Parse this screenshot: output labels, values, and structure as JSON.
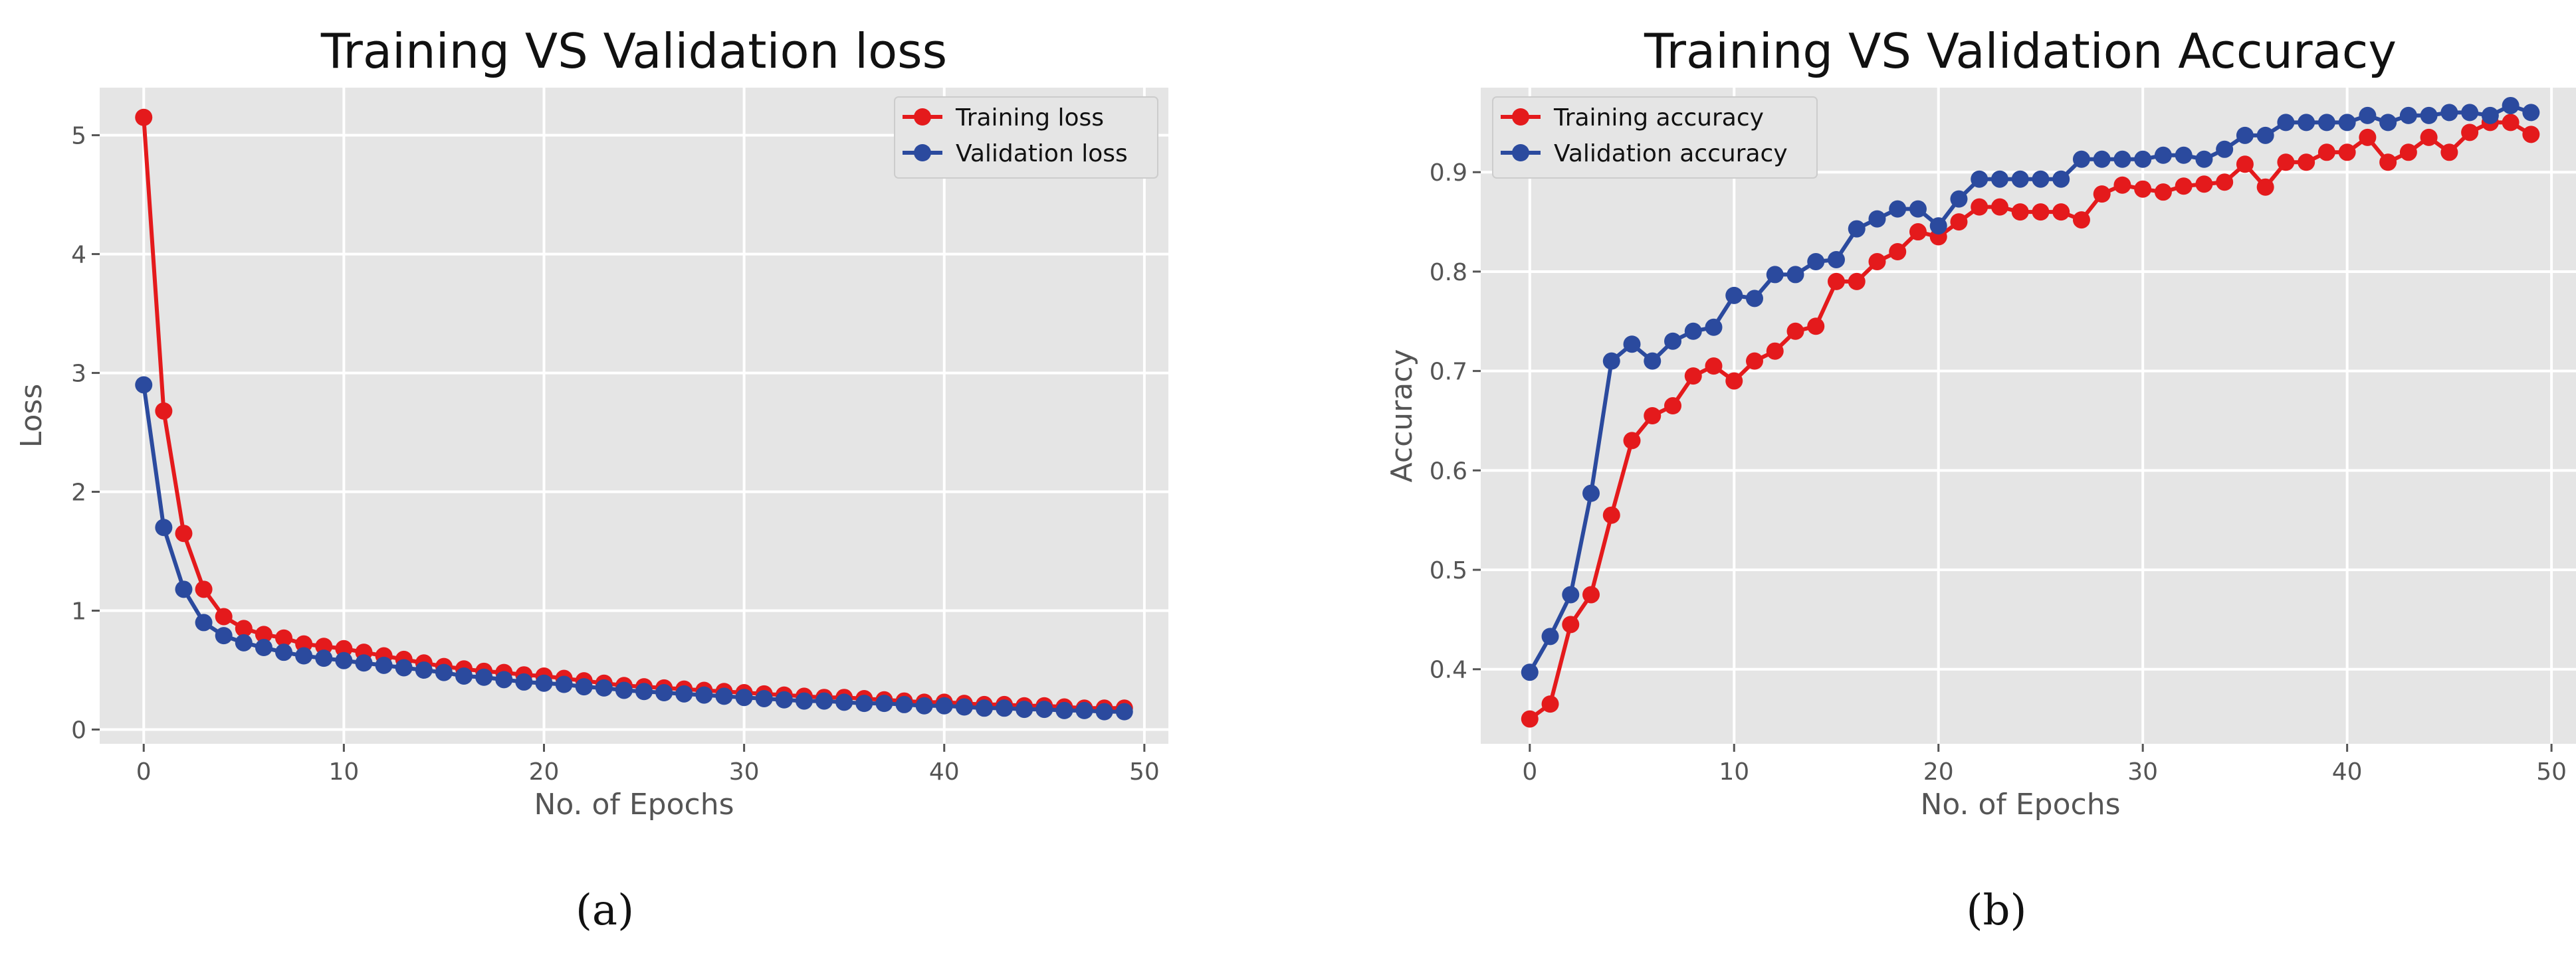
{
  "colors": {
    "training": "#e41a1c",
    "validation": "#2b4a9e",
    "panel_bg": "#e5e5e5",
    "grid": "#ffffff"
  },
  "chart_data": [
    {
      "type": "line",
      "title": "Training VS Validation loss",
      "xlabel": "No. of Epochs",
      "ylabel": "Loss",
      "caption": "(a)",
      "xlim": [
        -2.2,
        51.2
      ],
      "ylim": [
        -0.12,
        5.4
      ],
      "xticks": [
        0,
        10,
        20,
        30,
        40,
        50
      ],
      "yticks": [
        0,
        1,
        2,
        3,
        4,
        5
      ],
      "legend_position": "top-right",
      "x": [
        0,
        1,
        2,
        3,
        4,
        5,
        6,
        7,
        8,
        9,
        10,
        11,
        12,
        13,
        14,
        15,
        16,
        17,
        18,
        19,
        20,
        21,
        22,
        23,
        24,
        25,
        26,
        27,
        28,
        29,
        30,
        31,
        32,
        33,
        34,
        35,
        36,
        37,
        38,
        39,
        40,
        41,
        42,
        43,
        44,
        45,
        46,
        47,
        48,
        49
      ],
      "series": [
        {
          "name": "Training loss",
          "color": "#e41a1c",
          "values": [
            5.15,
            2.68,
            1.65,
            1.18,
            0.95,
            0.85,
            0.8,
            0.77,
            0.72,
            0.7,
            0.68,
            0.65,
            0.62,
            0.59,
            0.56,
            0.53,
            0.51,
            0.49,
            0.48,
            0.46,
            0.45,
            0.43,
            0.41,
            0.39,
            0.37,
            0.36,
            0.35,
            0.34,
            0.33,
            0.32,
            0.31,
            0.3,
            0.29,
            0.28,
            0.27,
            0.27,
            0.26,
            0.25,
            0.24,
            0.23,
            0.23,
            0.22,
            0.21,
            0.21,
            0.2,
            0.2,
            0.19,
            0.18,
            0.18,
            0.18
          ]
        },
        {
          "name": "Validation loss",
          "color": "#2b4a9e",
          "values": [
            2.9,
            1.7,
            1.18,
            0.9,
            0.79,
            0.73,
            0.69,
            0.65,
            0.62,
            0.6,
            0.58,
            0.56,
            0.54,
            0.52,
            0.5,
            0.48,
            0.45,
            0.44,
            0.42,
            0.4,
            0.39,
            0.38,
            0.36,
            0.35,
            0.33,
            0.32,
            0.31,
            0.3,
            0.29,
            0.28,
            0.27,
            0.26,
            0.25,
            0.24,
            0.24,
            0.23,
            0.22,
            0.22,
            0.21,
            0.2,
            0.2,
            0.19,
            0.18,
            0.18,
            0.17,
            0.17,
            0.16,
            0.16,
            0.15,
            0.15
          ]
        }
      ]
    },
    {
      "type": "line",
      "title": "Training VS Validation Accuracy",
      "xlabel": "No. of Epochs",
      "ylabel": "Accuracy",
      "caption": "(b)",
      "xlim": [
        -2.4,
        51.2
      ],
      "ylim": [
        0.325,
        0.985
      ],
      "xticks": [
        0,
        10,
        20,
        30,
        40,
        50
      ],
      "yticks": [
        0.4,
        0.5,
        0.6,
        0.7,
        0.8,
        0.9
      ],
      "legend_position": "top-left",
      "x": [
        0,
        1,
        2,
        3,
        4,
        5,
        6,
        7,
        8,
        9,
        10,
        11,
        12,
        13,
        14,
        15,
        16,
        17,
        18,
        19,
        20,
        21,
        22,
        23,
        24,
        25,
        26,
        27,
        28,
        29,
        30,
        31,
        32,
        33,
        34,
        35,
        36,
        37,
        38,
        39,
        40,
        41,
        42,
        43,
        44,
        45,
        46,
        47,
        48,
        49
      ],
      "series": [
        {
          "name": "Training accuracy",
          "color": "#e41a1c",
          "values": [
            0.35,
            0.365,
            0.445,
            0.475,
            0.555,
            0.63,
            0.655,
            0.665,
            0.695,
            0.705,
            0.69,
            0.71,
            0.72,
            0.74,
            0.745,
            0.79,
            0.79,
            0.81,
            0.82,
            0.84,
            0.835,
            0.85,
            0.865,
            0.865,
            0.86,
            0.86,
            0.86,
            0.852,
            0.878,
            0.887,
            0.883,
            0.88,
            0.886,
            0.888,
            0.89,
            0.908,
            0.885,
            0.91,
            0.91,
            0.92,
            0.92,
            0.935,
            0.91,
            0.92,
            0.935,
            0.92,
            0.94,
            0.95,
            0.95,
            0.938
          ]
        },
        {
          "name": "Validation accuracy",
          "color": "#2b4a9e",
          "values": [
            0.397,
            0.433,
            0.475,
            0.577,
            0.71,
            0.727,
            0.71,
            0.73,
            0.74,
            0.744,
            0.776,
            0.773,
            0.797,
            0.797,
            0.81,
            0.812,
            0.843,
            0.853,
            0.863,
            0.863,
            0.846,
            0.873,
            0.893,
            0.893,
            0.893,
            0.893,
            0.893,
            0.913,
            0.913,
            0.913,
            0.913,
            0.917,
            0.917,
            0.913,
            0.923,
            0.937,
            0.937,
            0.95,
            0.95,
            0.95,
            0.95,
            0.957,
            0.95,
            0.957,
            0.957,
            0.96,
            0.96,
            0.957,
            0.967,
            0.96
          ]
        }
      ]
    }
  ]
}
